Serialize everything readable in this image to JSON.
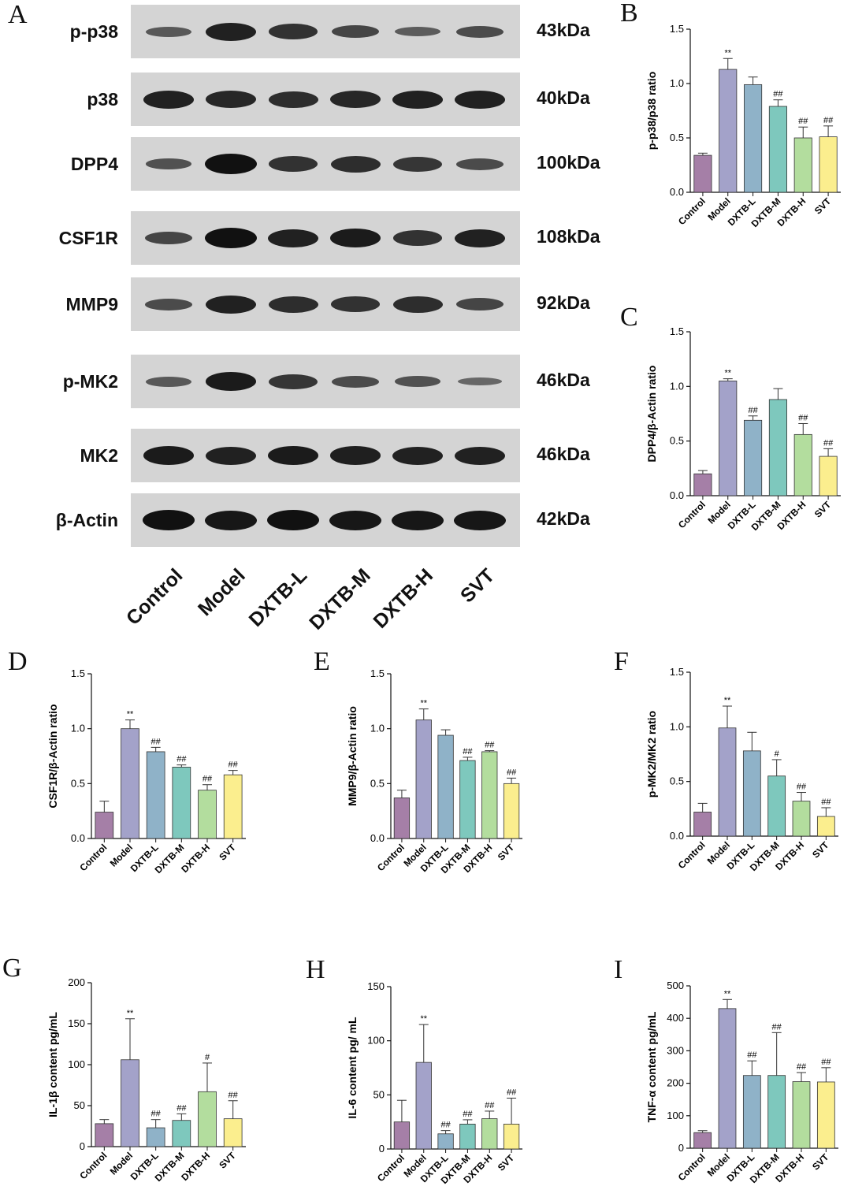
{
  "panel_letters": [
    "A",
    "B",
    "C",
    "D",
    "E",
    "F",
    "G",
    "H",
    "I"
  ],
  "lanes": [
    "Control",
    "Model",
    "DXTB-L",
    "DXTB-M",
    "DXTB-H",
    "SVT"
  ],
  "colors": [
    "#a57fa7",
    "#a3a2c9",
    "#8fb2c8",
    "#7ec8bd",
    "#b3dd9e",
    "#fbee8e"
  ],
  "blots": [
    {
      "protein": "p-p38",
      "mw": "43kDa",
      "intensities": [
        0.35,
        0.85,
        0.7,
        0.5,
        0.3,
        0.45
      ]
    },
    {
      "protein": "p38",
      "mw": "40kDa",
      "intensities": [
        0.85,
        0.8,
        0.75,
        0.8,
        0.85,
        0.85
      ]
    },
    {
      "protein": "DPP4",
      "mw": "100kDa",
      "intensities": [
        0.4,
        1.0,
        0.7,
        0.75,
        0.65,
        0.45
      ]
    },
    {
      "protein": "CSF1R",
      "mw": "108kDa",
      "intensities": [
        0.5,
        1.0,
        0.85,
        0.9,
        0.7,
        0.85
      ]
    },
    {
      "protein": "MMP9",
      "mw": "92kDa",
      "intensities": [
        0.45,
        0.85,
        0.75,
        0.7,
        0.75,
        0.5
      ]
    },
    {
      "protein": "p-MK2",
      "mw": "46kDa",
      "intensities": [
        0.35,
        0.9,
        0.65,
        0.45,
        0.4,
        0.2
      ]
    },
    {
      "protein": "MK2",
      "mw": "46kDa",
      "intensities": [
        0.9,
        0.85,
        0.9,
        0.88,
        0.85,
        0.85
      ]
    },
    {
      "protein": "β-Actin",
      "mw": "42kDa",
      "intensities": [
        1.0,
        0.95,
        1.0,
        0.95,
        0.95,
        0.95
      ]
    }
  ],
  "chart_data": [
    {
      "panel": "B",
      "type": "bar",
      "categories": [
        "Control",
        "Model",
        "DXTB-L",
        "DXTB-M",
        "DXTB-H",
        "SVT"
      ],
      "values": [
        0.34,
        1.13,
        0.99,
        0.79,
        0.5,
        0.51
      ],
      "errors": [
        0.02,
        0.1,
        0.07,
        0.06,
        0.1,
        0.1
      ],
      "significance": [
        "",
        "**",
        "",
        "##",
        "##",
        "##"
      ],
      "ylabel": "p-p38/p38 ratio",
      "ylim": [
        0,
        1.5
      ],
      "yticks": [
        "0.0",
        "0.5",
        "1.0",
        "1.5"
      ],
      "tick_values": [
        0,
        0.5,
        1.0,
        1.5
      ]
    },
    {
      "panel": "C",
      "type": "bar",
      "categories": [
        "Control",
        "Model",
        "DXTB-L",
        "DXTB-M",
        "DXTB-H",
        "SVT"
      ],
      "values": [
        0.2,
        1.05,
        0.69,
        0.88,
        0.56,
        0.36
      ],
      "errors": [
        0.03,
        0.02,
        0.04,
        0.1,
        0.1,
        0.07
      ],
      "significance": [
        "",
        "**",
        "##",
        "",
        "##",
        "##"
      ],
      "ylabel": "DPP4/β-Actin ratio",
      "ylim": [
        0,
        1.5
      ],
      "yticks": [
        "0.0",
        "0.5",
        "1.0",
        "1.5"
      ],
      "tick_values": [
        0,
        0.5,
        1.0,
        1.5
      ]
    },
    {
      "panel": "D",
      "type": "bar",
      "categories": [
        "Control",
        "Model",
        "DXTB-L",
        "DXTB-M",
        "DXTB-H",
        "SVT"
      ],
      "values": [
        0.24,
        1.0,
        0.79,
        0.65,
        0.44,
        0.58
      ],
      "errors": [
        0.1,
        0.08,
        0.04,
        0.02,
        0.05,
        0.04
      ],
      "significance": [
        "",
        "**",
        "##",
        "##",
        "##",
        "##"
      ],
      "ylabel": "CSF1R/β-Actin ratio",
      "ylim": [
        0,
        1.5
      ],
      "yticks": [
        "0.0",
        "0.5",
        "1.0",
        "1.5"
      ],
      "tick_values": [
        0,
        0.5,
        1.0,
        1.5
      ]
    },
    {
      "panel": "E",
      "type": "bar",
      "categories": [
        "Control",
        "Model",
        "DXTB-L",
        "DXTB-M",
        "DXTB-H",
        "SVT"
      ],
      "values": [
        0.37,
        1.08,
        0.94,
        0.71,
        0.79,
        0.5
      ],
      "errors": [
        0.07,
        0.1,
        0.05,
        0.03,
        0.01,
        0.05
      ],
      "significance": [
        "",
        "**",
        "",
        "##",
        "##",
        "##"
      ],
      "ylabel": "MMP9/β-Actin ratio",
      "ylim": [
        0,
        1.5
      ],
      "yticks": [
        "0.0",
        "0.5",
        "1.0",
        "1.5"
      ],
      "tick_values": [
        0,
        0.5,
        1.0,
        1.5
      ]
    },
    {
      "panel": "F",
      "type": "bar",
      "categories": [
        "Control",
        "Model",
        "DXTB-L",
        "DXTB-M",
        "DXTB-H",
        "SVT"
      ],
      "values": [
        0.22,
        0.99,
        0.78,
        0.55,
        0.32,
        0.18
      ],
      "errors": [
        0.08,
        0.2,
        0.17,
        0.15,
        0.08,
        0.08
      ],
      "significance": [
        "",
        "**",
        "",
        "#",
        "##",
        "##"
      ],
      "ylabel": "p-MK2/MK2 ratio",
      "ylim": [
        0,
        1.5
      ],
      "yticks": [
        "0.0",
        "0.5",
        "1.0",
        "1.5"
      ],
      "tick_values": [
        0,
        0.5,
        1.0,
        1.5
      ]
    },
    {
      "panel": "G",
      "type": "bar",
      "categories": [
        "Control",
        "Model",
        "DXTB-L",
        "DXTB-M",
        "DXTB-H",
        "SVT"
      ],
      "values": [
        28,
        106,
        23,
        32,
        67,
        34
      ],
      "errors": [
        5,
        50,
        10,
        8,
        35,
        22
      ],
      "significance": [
        "",
        "**",
        "##",
        "##",
        "#",
        "##"
      ],
      "ylabel": "IL-1β content pg/mL",
      "ylim": [
        0,
        200
      ],
      "yticks": [
        "0",
        "50",
        "100",
        "150",
        "200"
      ],
      "tick_values": [
        0,
        50,
        100,
        150,
        200
      ]
    },
    {
      "panel": "H",
      "type": "bar",
      "categories": [
        "Control",
        "Model",
        "DXTB-L",
        "DXTB-M",
        "DXTB-H",
        "SVT"
      ],
      "values": [
        25,
        80,
        14,
        23,
        28,
        23
      ],
      "errors": [
        20,
        35,
        3,
        4,
        7,
        24
      ],
      "significance": [
        "",
        "**",
        "##",
        "##",
        "##",
        "##"
      ],
      "ylabel": "IL-6 content pg/ mL",
      "ylim": [
        0,
        150
      ],
      "yticks": [
        "0",
        "50",
        "100",
        "150"
      ],
      "tick_values": [
        0,
        50,
        100,
        150
      ]
    },
    {
      "panel": "I",
      "type": "bar",
      "categories": [
        "Control",
        "Model",
        "DXTB-L",
        "DXTB-M",
        "DXTB-H",
        "SVT"
      ],
      "values": [
        48,
        430,
        224,
        224,
        205,
        204
      ],
      "errors": [
        6,
        28,
        45,
        132,
        28,
        44
      ],
      "significance": [
        "",
        "**",
        "##",
        "##",
        "##",
        "##"
      ],
      "ylabel": "TNF-α content pg/mL",
      "ylim": [
        0,
        500
      ],
      "yticks": [
        "0",
        "100",
        "200",
        "300",
        "400",
        "500"
      ],
      "tick_values": [
        0,
        100,
        200,
        300,
        400,
        500
      ]
    }
  ]
}
